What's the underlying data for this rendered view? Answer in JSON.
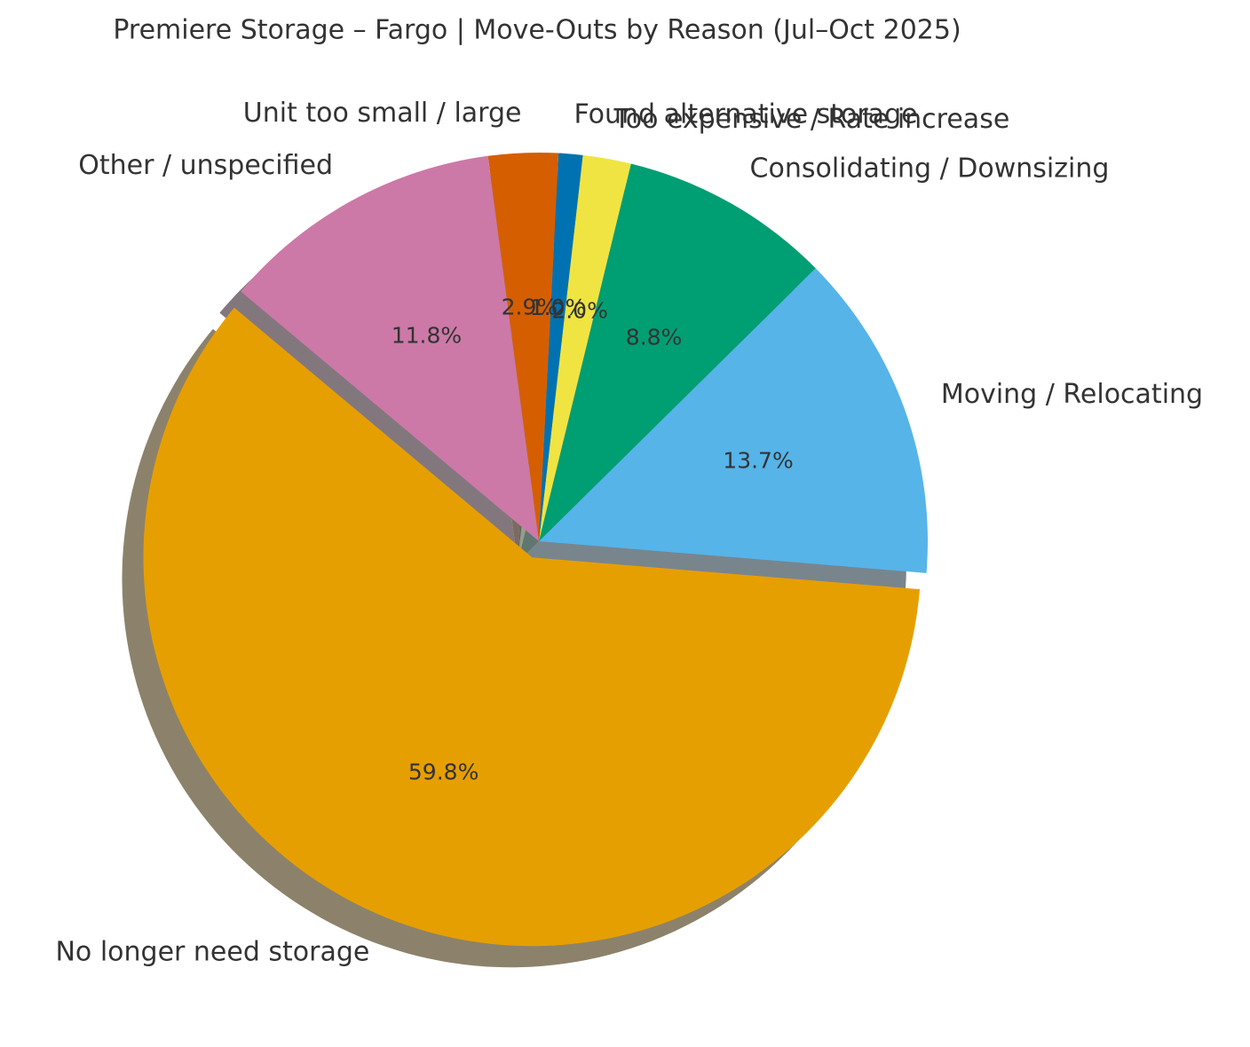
{
  "chart_data": {
    "type": "pie",
    "title": "Premiere Storage – Fargo | Move-Outs by Reason (Jul–Oct 2025)",
    "categories": [
      "Moving / Relocating",
      "Consolidating / Downsizing",
      "Too expensive / Rate increase",
      "Found alternative storage",
      "Unit too small / large",
      "Other / unspecified",
      "No longer need storage"
    ],
    "values": [
      13.7,
      8.8,
      2.0,
      1.0,
      2.9,
      11.8,
      59.8
    ],
    "value_labels": [
      "13.7%",
      "8.8%",
      "2.0%",
      "1.0%",
      "2.9%",
      "11.8%",
      "59.8%"
    ],
    "colors": [
      "#56b4e9",
      "#009e73",
      "#f0e442",
      "#0072b2",
      "#d55e00",
      "#cc79a7",
      "#e69f00"
    ]
  }
}
